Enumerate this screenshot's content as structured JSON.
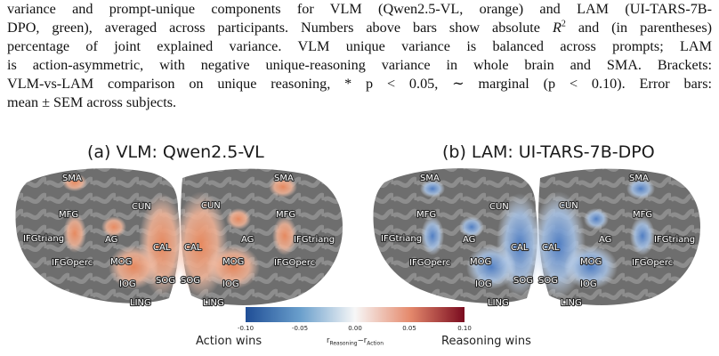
{
  "caption": {
    "lines": [
      "variance and prompt-unique components for VLM (Qwen2.5-VL, orange) and LAM (UI-TARS-7B-",
      "DPO, green), averaged across participants. Numbers above bars show absolute",
      "and (in parentheses)",
      "percentage of joint explained variance.  VLM unique variance is balanced across prompts; LAM",
      "is action-asymmetric, with negative unique-reasoning variance in whole brain and SMA. Brackets:",
      "VLM-vs-LAM comparison on unique reasoning, * p < 0.05, ∼ marginal (p < 0.10).  Error bars:",
      "mean ± SEM across subjects."
    ],
    "r_symbol": "R",
    "r_exponent": "2"
  },
  "panels": [
    {
      "title": "(a) VLM: Qwen2.5-VL",
      "left_hemisphere_labels": [
        "SMA",
        "MFG",
        "IFGtriang",
        "IFGOperc",
        "AG",
        "MOG",
        "IOG",
        "LING",
        "CUN",
        "CAL",
        "SOG"
      ],
      "right_hemisphere_labels": [
        "CUN",
        "CAL",
        "SOG",
        "MOG",
        "IOG",
        "LING",
        "AG",
        "SMA",
        "MFG",
        "IFGtriang",
        "IFGOperc"
      ]
    },
    {
      "title": "(b) LAM: UI-TARS-7B-DPO",
      "left_hemisphere_labels": [
        "SMA",
        "MFG",
        "IFGtriang",
        "IFGOperc",
        "AG",
        "MOG",
        "IOG",
        "LING",
        "CUN",
        "CAL",
        "SOG"
      ],
      "right_hemisphere_labels": [
        "CUN",
        "CAL",
        "SOG",
        "MOG",
        "IOG",
        "LING",
        "AG",
        "SMA",
        "MFG",
        "IFGtriang",
        "IFGOperc"
      ]
    }
  ],
  "colorbar": {
    "ticks": [
      "-0.10",
      "-0.05",
      "0.00",
      "0.05",
      "0.10"
    ],
    "tick_values": [
      -0.1,
      -0.05,
      0.0,
      0.05,
      0.1
    ],
    "min": -0.1,
    "max": 0.1,
    "left_label": "Action wins",
    "right_label": "Reasoning wins",
    "formula_r": "r",
    "formula_sub_a": "Reasoning",
    "formula_minus": "−",
    "formula_sub_b": "Action",
    "colors": [
      "#1f4e96",
      "#6a9fcc",
      "#f7f7f7",
      "#e58a6d",
      "#7a0b1f"
    ]
  },
  "colors": {
    "cortex_dark": "#6b6b6b",
    "cortex_light": "#8c8c8c",
    "vlm_overlay": "#f0a07a",
    "lam_overlay": "#7ea6d8"
  }
}
